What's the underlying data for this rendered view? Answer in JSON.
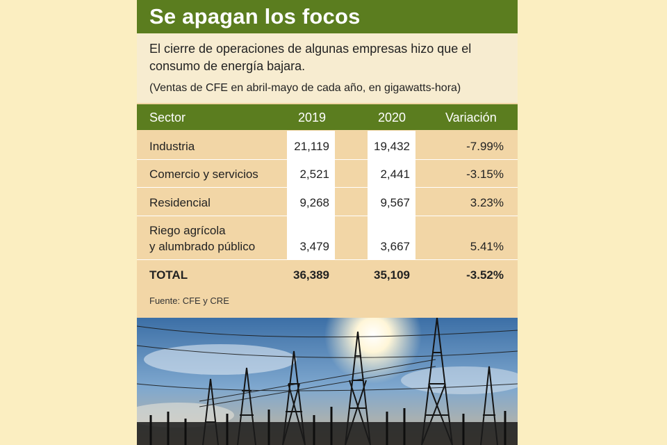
{
  "title": "Se apagan los focos",
  "subtitle": "El cierre de operaciones de algunas empresas hizo que el consumo de energía bajara.",
  "units": "(Ventas de CFE en abril-mayo de cada año, en gigawatts-hora)",
  "colors": {
    "green": "#5b7d1f",
    "tan": "#f2d6a6",
    "cream": "#f7ecd0",
    "page": "#fbeec1"
  },
  "chart_data": {
    "type": "table",
    "columns": [
      "Sector",
      "2019",
      "2020",
      "Variación"
    ],
    "rows": [
      {
        "sector": "Industria",
        "y2019": "21,119",
        "y2020": "19,432",
        "variacion": "-7.99%"
      },
      {
        "sector": "Comercio y servicios",
        "y2019": "2,521",
        "y2020": "2,441",
        "variacion": "-3.15%"
      },
      {
        "sector": "Residencial",
        "y2019": "9,268",
        "y2020": "9,567",
        "variacion": "3.23%"
      },
      {
        "sector_line1": "Riego agrícola",
        "sector_line2": "y alumbrado público",
        "y2019": "3,479",
        "y2020": "3,667",
        "variacion": "5.41%"
      }
    ],
    "total": {
      "label": "TOTAL",
      "y2019": "36,389",
      "y2020": "35,109",
      "variacion": "-3.52%"
    }
  },
  "source": "Fuente: CFE y CRE",
  "photo_description_icon": "power-lines-photo"
}
